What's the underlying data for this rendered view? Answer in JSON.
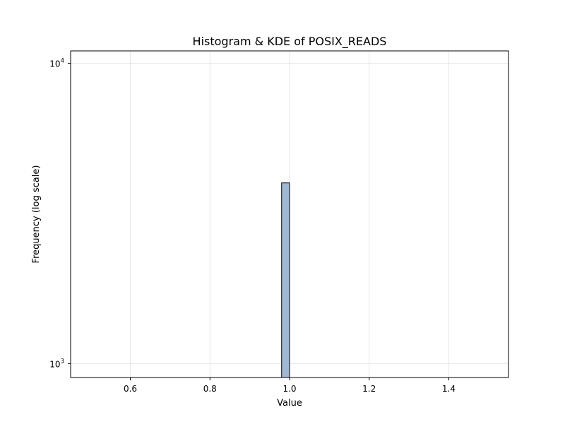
{
  "chart_data": {
    "type": "bar",
    "title": "Histogram & KDE of POSIX_READS",
    "xlabel": "Value",
    "ylabel": "Frequency (log scale)",
    "x_scale": "linear",
    "y_scale": "log",
    "xlim": [
      0.45,
      1.55
    ],
    "ylim": [
      900,
      11000
    ],
    "grid": true,
    "x_ticks": [
      {
        "value": 0.6,
        "label": "0.6"
      },
      {
        "value": 0.8,
        "label": "0.8"
      },
      {
        "value": 1.0,
        "label": "1.0"
      },
      {
        "value": 1.2,
        "label": "1.2"
      },
      {
        "value": 1.4,
        "label": "1.4"
      }
    ],
    "y_ticks": [
      {
        "value": 1000,
        "base": "10",
        "exponent": "3"
      },
      {
        "value": 10000,
        "base": "10",
        "exponent": "4"
      }
    ],
    "bars": [
      {
        "x_start": 0.98,
        "x_end": 1.0,
        "value": 4000
      }
    ],
    "colors": {
      "bar_fill": "#9fb8d3",
      "bar_edge": "#000000",
      "grid": "#e6e6e6",
      "axes": "#000000"
    }
  }
}
